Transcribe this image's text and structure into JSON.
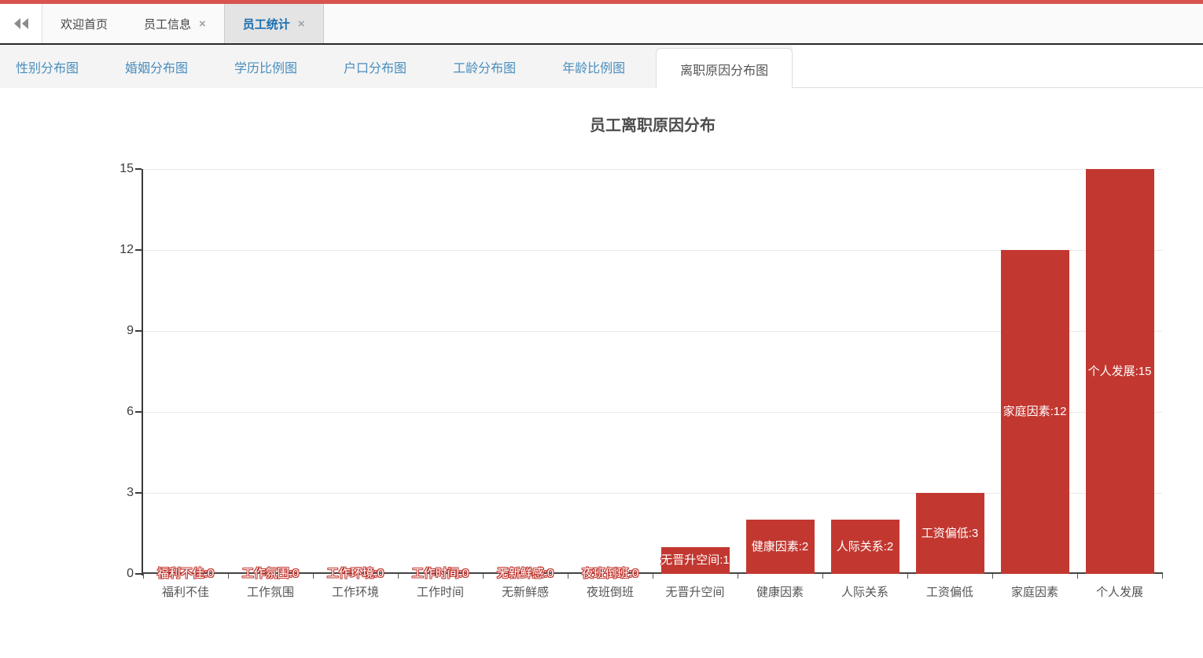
{
  "colors": {
    "top_strip": "#d9534f",
    "bar": "#c23831",
    "active_tab_text": "#1a6fb0",
    "chart_tab_text": "#4a8ebd"
  },
  "icons": {
    "collapse": "double-left-chevron",
    "close": "×"
  },
  "top_bar": {
    "tabs": [
      {
        "label": "欢迎首页",
        "closable": false,
        "active": false
      },
      {
        "label": "员工信息",
        "closable": true,
        "active": false
      },
      {
        "label": "员工统计",
        "closable": true,
        "active": true
      }
    ]
  },
  "chart_tabs": [
    {
      "label": "性别分布图",
      "active": false
    },
    {
      "label": "婚姻分布图",
      "active": false
    },
    {
      "label": "学历比例图",
      "active": false
    },
    {
      "label": "户口分布图",
      "active": false
    },
    {
      "label": "工龄分布图",
      "active": false
    },
    {
      "label": "年龄比例图",
      "active": false
    },
    {
      "label": "离职原因分布图",
      "active": true
    }
  ],
  "chart_data": {
    "type": "bar",
    "title": "员工离职原因分布",
    "categories": [
      "福利不佳",
      "工作氛围",
      "工作环境",
      "工作时间",
      "无新鲜感",
      "夜班倒班",
      "无晋升空间",
      "健康因素",
      "人际关系",
      "工资偏低",
      "家庭因素",
      "个人发展"
    ],
    "values": [
      0,
      0,
      0,
      0,
      0,
      0,
      1,
      2,
      2,
      3,
      12,
      15
    ],
    "bar_labels": [
      "福利不佳:0",
      "工作氛围:0",
      "工作环境:0",
      "工作时间:0",
      "无新鲜感:0",
      "夜班倒班:0",
      "无晋升空间:1",
      "健康因素:2",
      "人际关系:2",
      "工资偏低:3",
      "家庭因素:12",
      "个人发展:15"
    ],
    "xlabel": "",
    "ylabel": "",
    "ylim": [
      0,
      15
    ],
    "yticks": [
      0,
      3,
      6,
      9,
      12,
      15
    ],
    "grid": true,
    "legend": false,
    "bar_color": "#c23831",
    "label_text_color": "#ffffff",
    "label_outline_color": "#c23831"
  }
}
